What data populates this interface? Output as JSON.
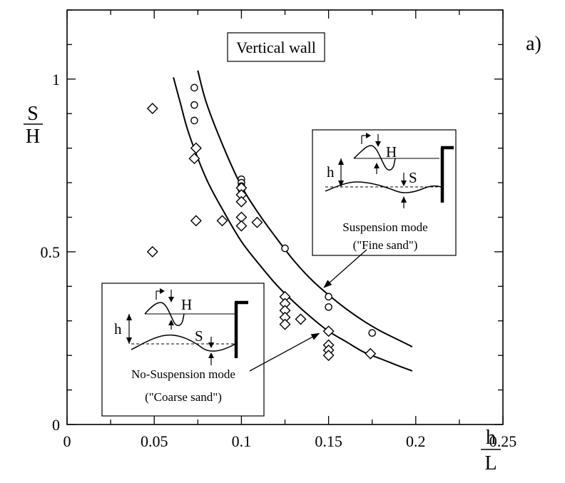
{
  "chart_data": {
    "type": "scatter",
    "title": "Vertical wall",
    "panel_label": "a)",
    "xlabel": {
      "numerator": "h",
      "denominator": "L"
    },
    "ylabel": {
      "numerator": "S",
      "denominator": "H"
    },
    "xlim": [
      0,
      0.25
    ],
    "ylim": [
      0,
      1.2
    ],
    "x_ticks": [
      {
        "value": 0,
        "label": "0"
      },
      {
        "value": 0.05,
        "label": "0.05"
      },
      {
        "value": 0.1,
        "label": "0.1"
      },
      {
        "value": 0.15,
        "label": "0.15"
      },
      {
        "value": 0.2,
        "label": "0.2"
      },
      {
        "value": 0.25,
        "label": "0.25"
      }
    ],
    "y_ticks": [
      {
        "value": 0,
        "label": "0"
      },
      {
        "value": 0.5,
        "label": "0.5"
      },
      {
        "value": 1,
        "label": "1"
      }
    ],
    "grid": false,
    "series": [
      {
        "marker": "circle",
        "points": [
          [
            0.073,
            0.975
          ],
          [
            0.073,
            0.925
          ],
          [
            0.073,
            0.88
          ],
          [
            0.1,
            0.71
          ],
          [
            0.1,
            0.7
          ],
          [
            0.1,
            0.69
          ],
          [
            0.1,
            0.68
          ],
          [
            0.125,
            0.51
          ],
          [
            0.15,
            0.37
          ],
          [
            0.15,
            0.34
          ],
          [
            0.175,
            0.265
          ]
        ]
      },
      {
        "marker": "diamond",
        "points": [
          [
            0.049,
            0.915
          ],
          [
            0.049,
            0.5
          ],
          [
            0.074,
            0.8
          ],
          [
            0.073,
            0.77
          ],
          [
            0.074,
            0.59
          ],
          [
            0.089,
            0.59
          ],
          [
            0.1,
            0.685
          ],
          [
            0.1,
            0.665
          ],
          [
            0.1,
            0.645
          ],
          [
            0.1,
            0.6
          ],
          [
            0.1,
            0.575
          ],
          [
            0.109,
            0.585
          ],
          [
            0.125,
            0.37
          ],
          [
            0.125,
            0.35
          ],
          [
            0.125,
            0.33
          ],
          [
            0.125,
            0.31
          ],
          [
            0.125,
            0.29
          ],
          [
            0.134,
            0.305
          ],
          [
            0.15,
            0.27
          ],
          [
            0.15,
            0.23
          ],
          [
            0.15,
            0.215
          ],
          [
            0.15,
            0.2
          ],
          [
            0.174,
            0.205
          ]
        ]
      }
    ],
    "curves": [
      {
        "role": "upper",
        "points": [
          [
            0.075,
            1.025
          ],
          [
            0.08,
            0.93
          ],
          [
            0.09,
            0.8
          ],
          [
            0.1,
            0.69
          ],
          [
            0.11,
            0.61
          ],
          [
            0.12,
            0.54
          ],
          [
            0.13,
            0.475
          ],
          [
            0.14,
            0.42
          ],
          [
            0.15,
            0.375
          ],
          [
            0.16,
            0.335
          ],
          [
            0.17,
            0.3
          ],
          [
            0.18,
            0.27
          ],
          [
            0.19,
            0.245
          ],
          [
            0.198,
            0.225
          ]
        ]
      },
      {
        "role": "lower",
        "points": [
          [
            0.061,
            1.005
          ],
          [
            0.065,
            0.93
          ],
          [
            0.07,
            0.84
          ],
          [
            0.08,
            0.71
          ],
          [
            0.09,
            0.615
          ],
          [
            0.1,
            0.53
          ],
          [
            0.11,
            0.465
          ],
          [
            0.12,
            0.405
          ],
          [
            0.13,
            0.355
          ],
          [
            0.14,
            0.31
          ],
          [
            0.15,
            0.27
          ],
          [
            0.16,
            0.24
          ],
          [
            0.17,
            0.21
          ],
          [
            0.18,
            0.19
          ],
          [
            0.19,
            0.17
          ],
          [
            0.198,
            0.155
          ]
        ]
      }
    ],
    "annotations": [
      {
        "id": "suspension",
        "caption_lines": [
          "Suspension mode",
          "(\"Fine sand\")"
        ],
        "symbol_h": "h",
        "symbol_H": "H",
        "symbol_S": "S",
        "arrow_target": [
          0.147,
          0.395
        ]
      },
      {
        "id": "no-suspension",
        "caption_lines": [
          "No-Suspension mode",
          "(\"Coarse sand\")"
        ],
        "symbol_h": "h",
        "symbol_H": "H",
        "symbol_S": "S",
        "arrow_target": [
          0.145,
          0.265
        ]
      }
    ]
  }
}
